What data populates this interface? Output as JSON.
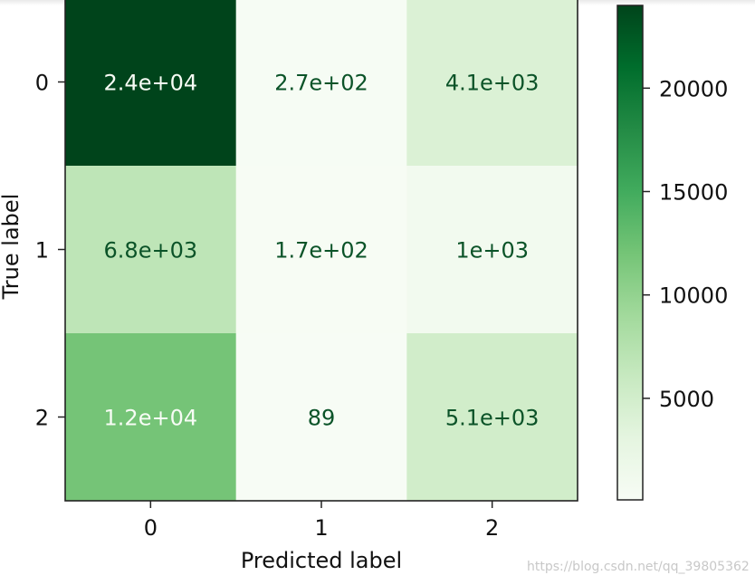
{
  "chart_data": {
    "type": "heatmap",
    "xlabel": "Predicted label",
    "ylabel": "True label",
    "x_categories": [
      "0",
      "1",
      "2"
    ],
    "y_categories": [
      "0",
      "1",
      "2"
    ],
    "values": [
      [
        24000,
        270,
        4100
      ],
      [
        6800,
        170,
        1000
      ],
      [
        12000,
        89,
        5100
      ]
    ],
    "cell_labels": [
      [
        "2.4e+04",
        "2.7e+02",
        "4.1e+03"
      ],
      [
        "6.8e+03",
        "1.7e+02",
        "1e+03"
      ],
      [
        "1.2e+04",
        "89",
        "5.1e+03"
      ]
    ],
    "colormap": "Greens",
    "colorbar": {
      "ticks": [
        5000,
        10000,
        15000,
        20000
      ],
      "tick_labels": [
        "5000",
        "10000",
        "15000",
        "20000"
      ],
      "range": [
        89,
        24000
      ],
      "colors": [
        "#f7fcf5",
        "#e5f5e0",
        "#c7e9c0",
        "#a1d99b",
        "#74c476",
        "#41ab5d",
        "#238b45",
        "#006d2c",
        "#00441b"
      ]
    },
    "text_colors": {
      "dark": "#0b5328",
      "light": "#f7fcf5"
    }
  },
  "watermark": "https://blog.csdn.net/qq_39805362"
}
